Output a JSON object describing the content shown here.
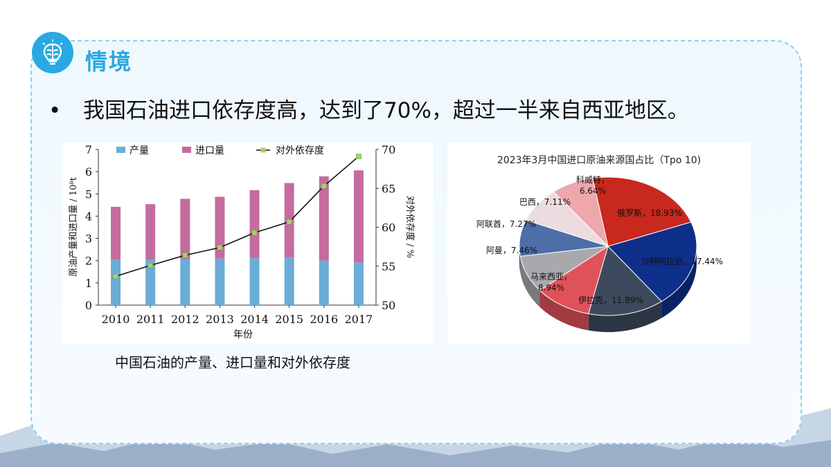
{
  "section": {
    "title": "情境",
    "icon": "brain-lightbulb-icon"
  },
  "bullet": {
    "text": "我国石油进口依存度高，达到了70%，超过一半来自西亚地区。"
  },
  "caption": "中国石油的产量、进口量和对外依存度",
  "colors": {
    "accent": "#29a8e2",
    "production": "#6aadd6",
    "import": "#c56c9e",
    "dependency_line": "#111111",
    "dependency_marker": "#a8cf6e"
  },
  "chart_data": [
    {
      "type": "bar",
      "stacked": true,
      "categories": [
        "2010",
        "2011",
        "2012",
        "2013",
        "2014",
        "2015",
        "2016",
        "2017"
      ],
      "series": [
        {
          "name": "产量",
          "values": [
            2.03,
            2.03,
            2.07,
            2.09,
            2.11,
            2.15,
            2.0,
            1.92
          ]
        },
        {
          "name": "进口量",
          "values": [
            2.39,
            2.51,
            2.71,
            2.78,
            3.06,
            3.34,
            3.79,
            4.14
          ]
        }
      ],
      "line_series": {
        "name": "对外依存度",
        "values": [
          53.7,
          55.1,
          56.4,
          57.4,
          59.3,
          60.7,
          65.3,
          69.1
        ],
        "axis": "right"
      },
      "xlabel": "年份",
      "ylabel": "原油产量和进口量 / 10⁸t",
      "ylabel_right": "对外依存度 / %",
      "yticks": [
        "0",
        "1",
        "2",
        "3",
        "4",
        "5",
        "6",
        "7"
      ],
      "ylim": [
        0,
        7
      ],
      "yticks_right": [
        "50",
        "55",
        "60",
        "65",
        "70"
      ],
      "ylim_right": [
        50,
        70
      ],
      "legend": "top",
      "grid": false
    },
    {
      "type": "pie",
      "title": "2023年3月中国进口原油来源国占比（Tpo 10)",
      "slices": [
        {
          "label": "俄罗斯，18.93%",
          "value": 18.93,
          "color": "#c8281e"
        },
        {
          "label": "沙特阿拉伯，17.44%",
          "value": 17.44,
          "color": "#0e2f8a"
        },
        {
          "label": "伊拉克，11.89%",
          "value": 11.89,
          "color": "#3d4a5e"
        },
        {
          "label": "马来西亚，8.94%",
          "value": 8.94,
          "color": "#e0525a"
        },
        {
          "label": "阿曼，7.46%",
          "value": 7.46,
          "color": "#a9a9ad"
        },
        {
          "label": "阿联酋，7.27%",
          "value": 7.27,
          "color": "#4e6ea8"
        },
        {
          "label": "巴西，7.11%",
          "value": 7.11,
          "color": "#ecdcdf"
        },
        {
          "label": "科威特，6.64%",
          "value": 6.64,
          "color": "#eda7ad"
        }
      ],
      "style": "3d"
    }
  ]
}
